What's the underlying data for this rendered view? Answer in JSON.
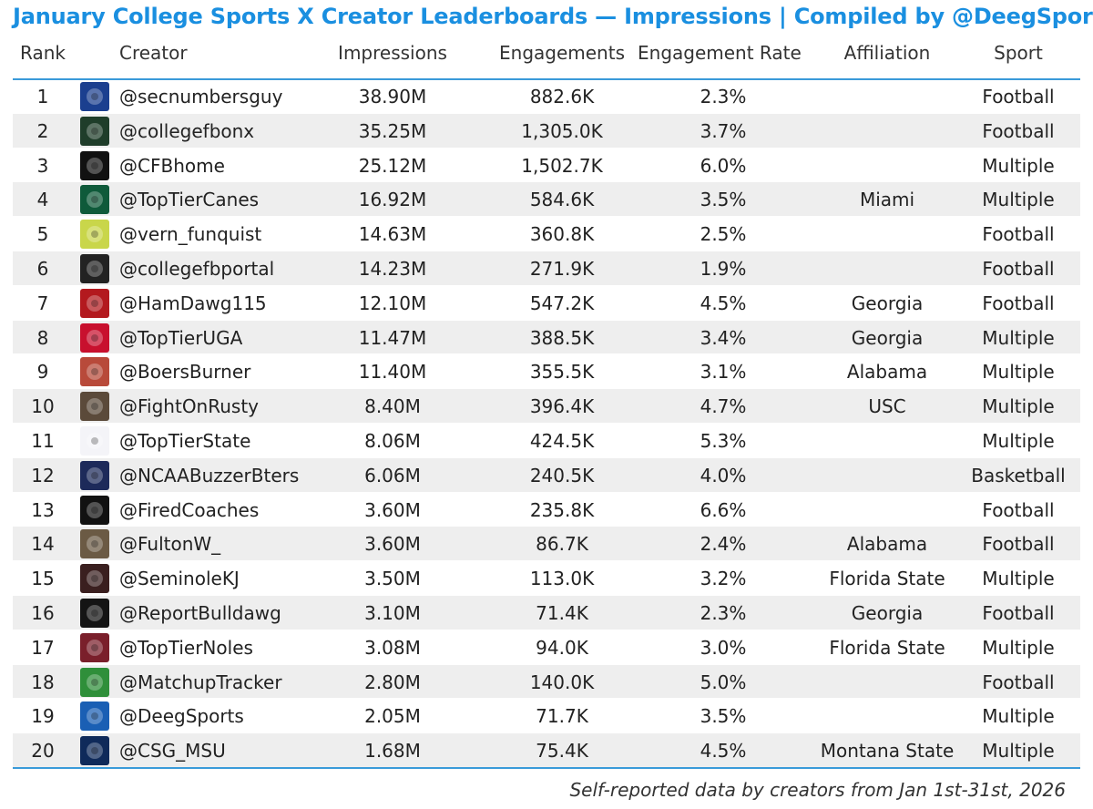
{
  "title": "January College Sports X Creator Leaderboards — Impressions | Compiled by @DeegSports",
  "footnote": "Self-reported data by creators from Jan 1st-31st, 2026",
  "chart_data": {
    "type": "table",
    "columns": [
      "Rank",
      "Creator",
      "Impressions",
      "Engagements",
      "Engagement Rate",
      "Affiliation",
      "Sport"
    ],
    "rows": [
      {
        "rank": "1",
        "creator": "@secnumbersguy",
        "impressions": "38.90M",
        "engagements": "882.6K",
        "rate": "2.3%",
        "affiliation": "",
        "sport": "Football",
        "avatar_icon": "sec-logo-icon",
        "avatar_color": "#1b3f8f"
      },
      {
        "rank": "2",
        "creator": "@collegefbonx",
        "impressions": "35.25M",
        "engagements": "1,305.0K",
        "rate": "3.7%",
        "affiliation": "",
        "sport": "Football",
        "avatar_icon": "football-shield-icon",
        "avatar_color": "#1f3d2a"
      },
      {
        "rank": "3",
        "creator": "@CFBhome",
        "impressions": "25.12M",
        "engagements": "1,502.7K",
        "rate": "6.0%",
        "affiliation": "",
        "sport": "Multiple",
        "avatar_icon": "cfb-home-logo-icon",
        "avatar_color": "#111111"
      },
      {
        "rank": "4",
        "creator": "@TopTierCanes",
        "impressions": "16.92M",
        "engagements": "584.6K",
        "rate": "3.5%",
        "affiliation": "Miami",
        "sport": "Multiple",
        "avatar_icon": "canes-logo-icon",
        "avatar_color": "#0f5a3a"
      },
      {
        "rank": "5",
        "creator": "@vern_funquist",
        "impressions": "14.63M",
        "engagements": "360.8K",
        "rate": "2.5%",
        "affiliation": "",
        "sport": "Football",
        "avatar_icon": "person-photo-icon",
        "avatar_color": "#c9d64a"
      },
      {
        "rank": "6",
        "creator": "@collegefbportal",
        "impressions": "14.23M",
        "engagements": "271.9K",
        "rate": "1.9%",
        "affiliation": "",
        "sport": "Football",
        "avatar_icon": "portal-logo-icon",
        "avatar_color": "#222222"
      },
      {
        "rank": "7",
        "creator": "@HamDawg115",
        "impressions": "12.10M",
        "engagements": "547.2K",
        "rate": "4.5%",
        "affiliation": "Georgia",
        "sport": "Football",
        "avatar_icon": "player-photo-icon",
        "avatar_color": "#b3191e"
      },
      {
        "rank": "8",
        "creator": "@TopTierUGA",
        "impressions": "11.47M",
        "engagements": "388.5K",
        "rate": "3.4%",
        "affiliation": "Georgia",
        "sport": "Multiple",
        "avatar_icon": "uga-logo-icon",
        "avatar_color": "#c8102e"
      },
      {
        "rank": "9",
        "creator": "@BoersBurner",
        "impressions": "11.40M",
        "engagements": "355.5K",
        "rate": "3.1%",
        "affiliation": "Alabama",
        "sport": "Multiple",
        "avatar_icon": "person-photo-icon",
        "avatar_color": "#b84a3a"
      },
      {
        "rank": "10",
        "creator": "@FightOnRusty",
        "impressions": "8.40M",
        "engagements": "396.4K",
        "rate": "4.7%",
        "affiliation": "USC",
        "sport": "Multiple",
        "avatar_icon": "dog-photo-icon",
        "avatar_color": "#5b4a3a"
      },
      {
        "rank": "11",
        "creator": "@TopTierState",
        "impressions": "8.06M",
        "engagements": "424.5K",
        "rate": "5.3%",
        "affiliation": "",
        "sport": "Multiple",
        "avatar_icon": "top-tier-logo-icon",
        "avatar_color": "#f4f4f8"
      },
      {
        "rank": "12",
        "creator": "@NCAABuzzerBters",
        "impressions": "6.06M",
        "engagements": "240.5K",
        "rate": "4.0%",
        "affiliation": "",
        "sport": "Basketball",
        "avatar_icon": "buzzer-beater-logo-icon",
        "avatar_color": "#1d2a5a"
      },
      {
        "rank": "13",
        "creator": "@FiredCoaches",
        "impressions": "3.60M",
        "engagements": "235.8K",
        "rate": "6.6%",
        "affiliation": "",
        "sport": "Football",
        "avatar_icon": "fired-coaches-logo-icon",
        "avatar_color": "#111111"
      },
      {
        "rank": "14",
        "creator": "@FultonW_",
        "impressions": "3.60M",
        "engagements": "86.7K",
        "rate": "2.4%",
        "affiliation": "Alabama",
        "sport": "Football",
        "avatar_icon": "person-photo-icon",
        "avatar_color": "#6b5a44"
      },
      {
        "rank": "15",
        "creator": "@SeminoleKJ",
        "impressions": "3.50M",
        "engagements": "113.0K",
        "rate": "3.2%",
        "affiliation": "Florida State",
        "sport": "Multiple",
        "avatar_icon": "person-photo-icon",
        "avatar_color": "#3a1f1f"
      },
      {
        "rank": "16",
        "creator": "@ReportBulldawg",
        "impressions": "3.10M",
        "engagements": "71.4K",
        "rate": "2.3%",
        "affiliation": "Georgia",
        "sport": "Football",
        "avatar_icon": "bulldawg-logo-icon",
        "avatar_color": "#141414"
      },
      {
        "rank": "17",
        "creator": "@TopTierNoles",
        "impressions": "3.08M",
        "engagements": "94.0K",
        "rate": "3.0%",
        "affiliation": "Florida State",
        "sport": "Multiple",
        "avatar_icon": "noles-logo-icon",
        "avatar_color": "#7a1f2b"
      },
      {
        "rank": "18",
        "creator": "@MatchupTracker",
        "impressions": "2.80M",
        "engagements": "140.0K",
        "rate": "5.0%",
        "affiliation": "",
        "sport": "Football",
        "avatar_icon": "matchup-tracker-logo-icon",
        "avatar_color": "#2f8f3a"
      },
      {
        "rank": "19",
        "creator": "@DeegSports",
        "impressions": "2.05M",
        "engagements": "71.7K",
        "rate": "3.5%",
        "affiliation": "",
        "sport": "Multiple",
        "avatar_icon": "deeg-sports-logo-icon",
        "avatar_color": "#1a5fb4"
      },
      {
        "rank": "20",
        "creator": "@CSG_MSU",
        "impressions": "1.68M",
        "engagements": "75.4K",
        "rate": "4.5%",
        "affiliation": "Montana State",
        "sport": "Multiple",
        "avatar_icon": "csg-logo-icon",
        "avatar_color": "#0f2a5a"
      }
    ]
  },
  "colors": {
    "title": "#1a8fe0",
    "rule": "#3a9ad9",
    "row_shade": "#eeeeee"
  }
}
